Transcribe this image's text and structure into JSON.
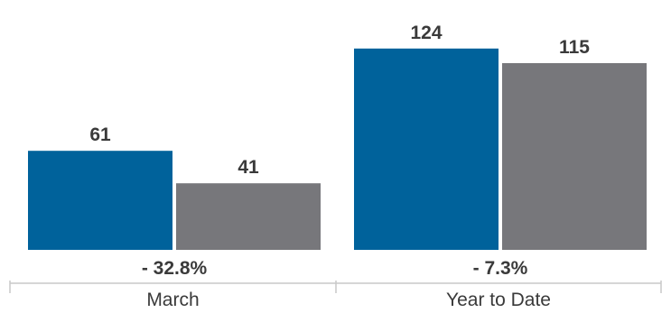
{
  "chart_data": {
    "type": "bar",
    "categories": [
      "March",
      "Year to Date"
    ],
    "series": [
      {
        "values": [
          61,
          124
        ],
        "color": "#00629b"
      },
      {
        "values": [
          41,
          115
        ],
        "color": "#77777b"
      }
    ],
    "data_labels": [
      [
        "61",
        "124"
      ],
      [
        "41",
        "115"
      ]
    ],
    "change_labels": [
      "- 32.8%",
      "- 7.3%"
    ],
    "ylim": [
      0,
      135
    ],
    "axis_color": "#c8c8c8",
    "label_color": "#3a3a3a",
    "grid": false,
    "legend": "none"
  }
}
